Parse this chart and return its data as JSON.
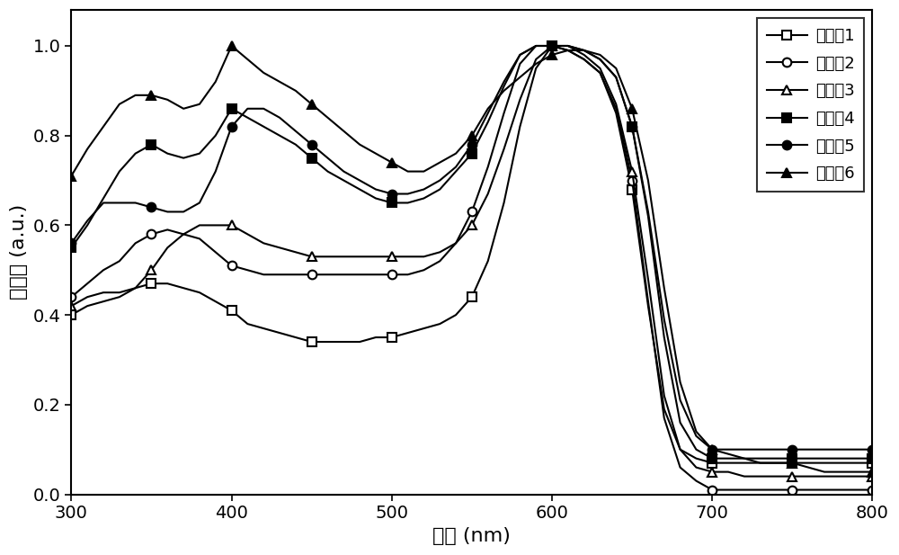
{
  "title": "",
  "xlabel": "波长 (nm)",
  "ylabel": "吸收值 (a.u.)",
  "xlim": [
    300,
    800
  ],
  "ylim": [
    0.0,
    1.08
  ],
  "yticks": [
    0.0,
    0.2,
    0.4,
    0.6,
    0.8,
    1.0
  ],
  "xticks": [
    300,
    400,
    500,
    600,
    700,
    800
  ],
  "legend_labels": [
    "共聚物1",
    "共聚物2",
    "共聚物3",
    "共聚物4",
    "共聚物5",
    "共聚物6"
  ],
  "series": {
    "共聚物1": {
      "x": [
        300,
        310,
        320,
        330,
        340,
        350,
        360,
        370,
        380,
        390,
        400,
        410,
        420,
        430,
        440,
        450,
        460,
        470,
        480,
        490,
        500,
        510,
        520,
        530,
        540,
        550,
        560,
        570,
        580,
        590,
        600,
        610,
        620,
        630,
        640,
        650,
        660,
        670,
        680,
        690,
        700,
        710,
        720,
        730,
        740,
        750,
        760,
        770,
        780,
        790,
        800
      ],
      "y": [
        0.4,
        0.42,
        0.43,
        0.44,
        0.46,
        0.47,
        0.47,
        0.46,
        0.45,
        0.43,
        0.41,
        0.38,
        0.37,
        0.36,
        0.35,
        0.34,
        0.34,
        0.34,
        0.34,
        0.35,
        0.35,
        0.36,
        0.37,
        0.38,
        0.4,
        0.44,
        0.52,
        0.65,
        0.82,
        0.95,
        1.0,
        0.99,
        0.97,
        0.94,
        0.85,
        0.68,
        0.42,
        0.19,
        0.1,
        0.08,
        0.07,
        0.07,
        0.07,
        0.07,
        0.07,
        0.07,
        0.07,
        0.07,
        0.07,
        0.07,
        0.07
      ],
      "marker": "s",
      "markerfacecolor": "white",
      "markeredgecolor": "black",
      "color": "black",
      "markersize": 7,
      "linewidth": 1.5
    },
    "共聚物2": {
      "x": [
        300,
        310,
        320,
        330,
        340,
        350,
        360,
        370,
        380,
        390,
        400,
        410,
        420,
        430,
        440,
        450,
        460,
        470,
        480,
        490,
        500,
        510,
        520,
        530,
        540,
        550,
        560,
        570,
        580,
        590,
        600,
        610,
        620,
        630,
        640,
        650,
        660,
        670,
        680,
        690,
        700,
        710,
        720,
        730,
        740,
        750,
        760,
        770,
        780,
        790,
        800
      ],
      "y": [
        0.44,
        0.47,
        0.5,
        0.52,
        0.56,
        0.58,
        0.59,
        0.58,
        0.57,
        0.54,
        0.51,
        0.5,
        0.49,
        0.49,
        0.49,
        0.49,
        0.49,
        0.49,
        0.49,
        0.49,
        0.49,
        0.49,
        0.5,
        0.52,
        0.56,
        0.63,
        0.73,
        0.85,
        0.96,
        1.0,
        1.0,
        0.99,
        0.97,
        0.94,
        0.86,
        0.7,
        0.43,
        0.17,
        0.06,
        0.03,
        0.01,
        0.01,
        0.01,
        0.01,
        0.01,
        0.01,
        0.01,
        0.01,
        0.01,
        0.01,
        0.01
      ],
      "marker": "o",
      "markerfacecolor": "white",
      "markeredgecolor": "black",
      "color": "black",
      "markersize": 7,
      "linewidth": 1.5
    },
    "共聚物3": {
      "x": [
        300,
        310,
        320,
        330,
        340,
        350,
        360,
        370,
        380,
        390,
        400,
        410,
        420,
        430,
        440,
        450,
        460,
        470,
        480,
        490,
        500,
        510,
        520,
        530,
        540,
        550,
        560,
        570,
        580,
        590,
        600,
        610,
        620,
        630,
        640,
        650,
        660,
        670,
        680,
        690,
        700,
        710,
        720,
        730,
        740,
        750,
        760,
        770,
        780,
        790,
        800
      ],
      "y": [
        0.42,
        0.44,
        0.45,
        0.45,
        0.46,
        0.5,
        0.55,
        0.58,
        0.6,
        0.6,
        0.6,
        0.58,
        0.56,
        0.55,
        0.54,
        0.53,
        0.53,
        0.53,
        0.53,
        0.53,
        0.53,
        0.53,
        0.53,
        0.54,
        0.56,
        0.6,
        0.67,
        0.77,
        0.88,
        0.97,
        1.0,
        1.0,
        0.98,
        0.95,
        0.87,
        0.72,
        0.48,
        0.22,
        0.1,
        0.06,
        0.05,
        0.05,
        0.04,
        0.04,
        0.04,
        0.04,
        0.04,
        0.04,
        0.04,
        0.04,
        0.04
      ],
      "marker": "^",
      "markerfacecolor": "white",
      "markeredgecolor": "black",
      "color": "black",
      "markersize": 7,
      "linewidth": 1.5
    },
    "共聚物4": {
      "x": [
        300,
        310,
        320,
        330,
        340,
        350,
        360,
        370,
        380,
        390,
        400,
        410,
        420,
        430,
        440,
        450,
        460,
        470,
        480,
        490,
        500,
        510,
        520,
        530,
        540,
        550,
        560,
        570,
        580,
        590,
        600,
        610,
        620,
        630,
        640,
        650,
        660,
        670,
        680,
        690,
        700,
        710,
        720,
        730,
        740,
        750,
        760,
        770,
        780,
        790,
        800
      ],
      "y": [
        0.55,
        0.6,
        0.66,
        0.72,
        0.76,
        0.78,
        0.76,
        0.75,
        0.76,
        0.8,
        0.86,
        0.84,
        0.82,
        0.8,
        0.78,
        0.75,
        0.72,
        0.7,
        0.68,
        0.66,
        0.65,
        0.65,
        0.66,
        0.68,
        0.72,
        0.76,
        0.83,
        0.91,
        0.98,
        1.0,
        1.0,
        1.0,
        0.99,
        0.97,
        0.93,
        0.82,
        0.62,
        0.35,
        0.16,
        0.1,
        0.08,
        0.08,
        0.08,
        0.08,
        0.08,
        0.08,
        0.08,
        0.08,
        0.08,
        0.08,
        0.08
      ],
      "marker": "s",
      "markerfacecolor": "black",
      "markeredgecolor": "black",
      "color": "black",
      "markersize": 7,
      "linewidth": 1.5
    },
    "共聚物5": {
      "x": [
        300,
        310,
        320,
        330,
        340,
        350,
        360,
        370,
        380,
        390,
        400,
        410,
        420,
        430,
        440,
        450,
        460,
        470,
        480,
        490,
        500,
        510,
        520,
        530,
        540,
        550,
        560,
        570,
        580,
        590,
        600,
        610,
        620,
        630,
        640,
        650,
        660,
        670,
        680,
        690,
        700,
        710,
        720,
        730,
        740,
        750,
        760,
        770,
        780,
        790,
        800
      ],
      "y": [
        0.56,
        0.61,
        0.65,
        0.65,
        0.65,
        0.64,
        0.63,
        0.63,
        0.65,
        0.72,
        0.82,
        0.86,
        0.86,
        0.84,
        0.81,
        0.78,
        0.75,
        0.72,
        0.7,
        0.68,
        0.67,
        0.67,
        0.68,
        0.7,
        0.73,
        0.78,
        0.85,
        0.92,
        0.98,
        1.0,
        1.0,
        1.0,
        0.99,
        0.97,
        0.93,
        0.82,
        0.63,
        0.39,
        0.21,
        0.13,
        0.1,
        0.1,
        0.1,
        0.1,
        0.1,
        0.1,
        0.1,
        0.1,
        0.1,
        0.1,
        0.1
      ],
      "marker": "o",
      "markerfacecolor": "black",
      "markeredgecolor": "black",
      "color": "black",
      "markersize": 7,
      "linewidth": 1.5
    },
    "共聚物6": {
      "x": [
        300,
        310,
        320,
        330,
        340,
        350,
        360,
        370,
        380,
        390,
        400,
        410,
        420,
        430,
        440,
        450,
        460,
        470,
        480,
        490,
        500,
        510,
        520,
        530,
        540,
        550,
        560,
        570,
        580,
        590,
        600,
        610,
        620,
        630,
        640,
        650,
        660,
        670,
        680,
        690,
        700,
        710,
        720,
        730,
        740,
        750,
        760,
        770,
        780,
        790,
        800
      ],
      "y": [
        0.71,
        0.77,
        0.82,
        0.87,
        0.89,
        0.89,
        0.88,
        0.86,
        0.87,
        0.92,
        1.0,
        0.97,
        0.94,
        0.92,
        0.9,
        0.87,
        0.84,
        0.81,
        0.78,
        0.76,
        0.74,
        0.72,
        0.72,
        0.74,
        0.76,
        0.8,
        0.86,
        0.9,
        0.93,
        0.96,
        0.98,
        0.99,
        0.99,
        0.98,
        0.95,
        0.86,
        0.7,
        0.46,
        0.25,
        0.14,
        0.1,
        0.09,
        0.08,
        0.07,
        0.07,
        0.07,
        0.06,
        0.05,
        0.05,
        0.05,
        0.05
      ],
      "marker": "^",
      "markerfacecolor": "black",
      "markeredgecolor": "black",
      "color": "black",
      "markersize": 7,
      "linewidth": 1.5
    }
  },
  "background_color": "#ffffff",
  "font_size_label": 16,
  "font_size_tick": 14,
  "font_size_legend": 13
}
